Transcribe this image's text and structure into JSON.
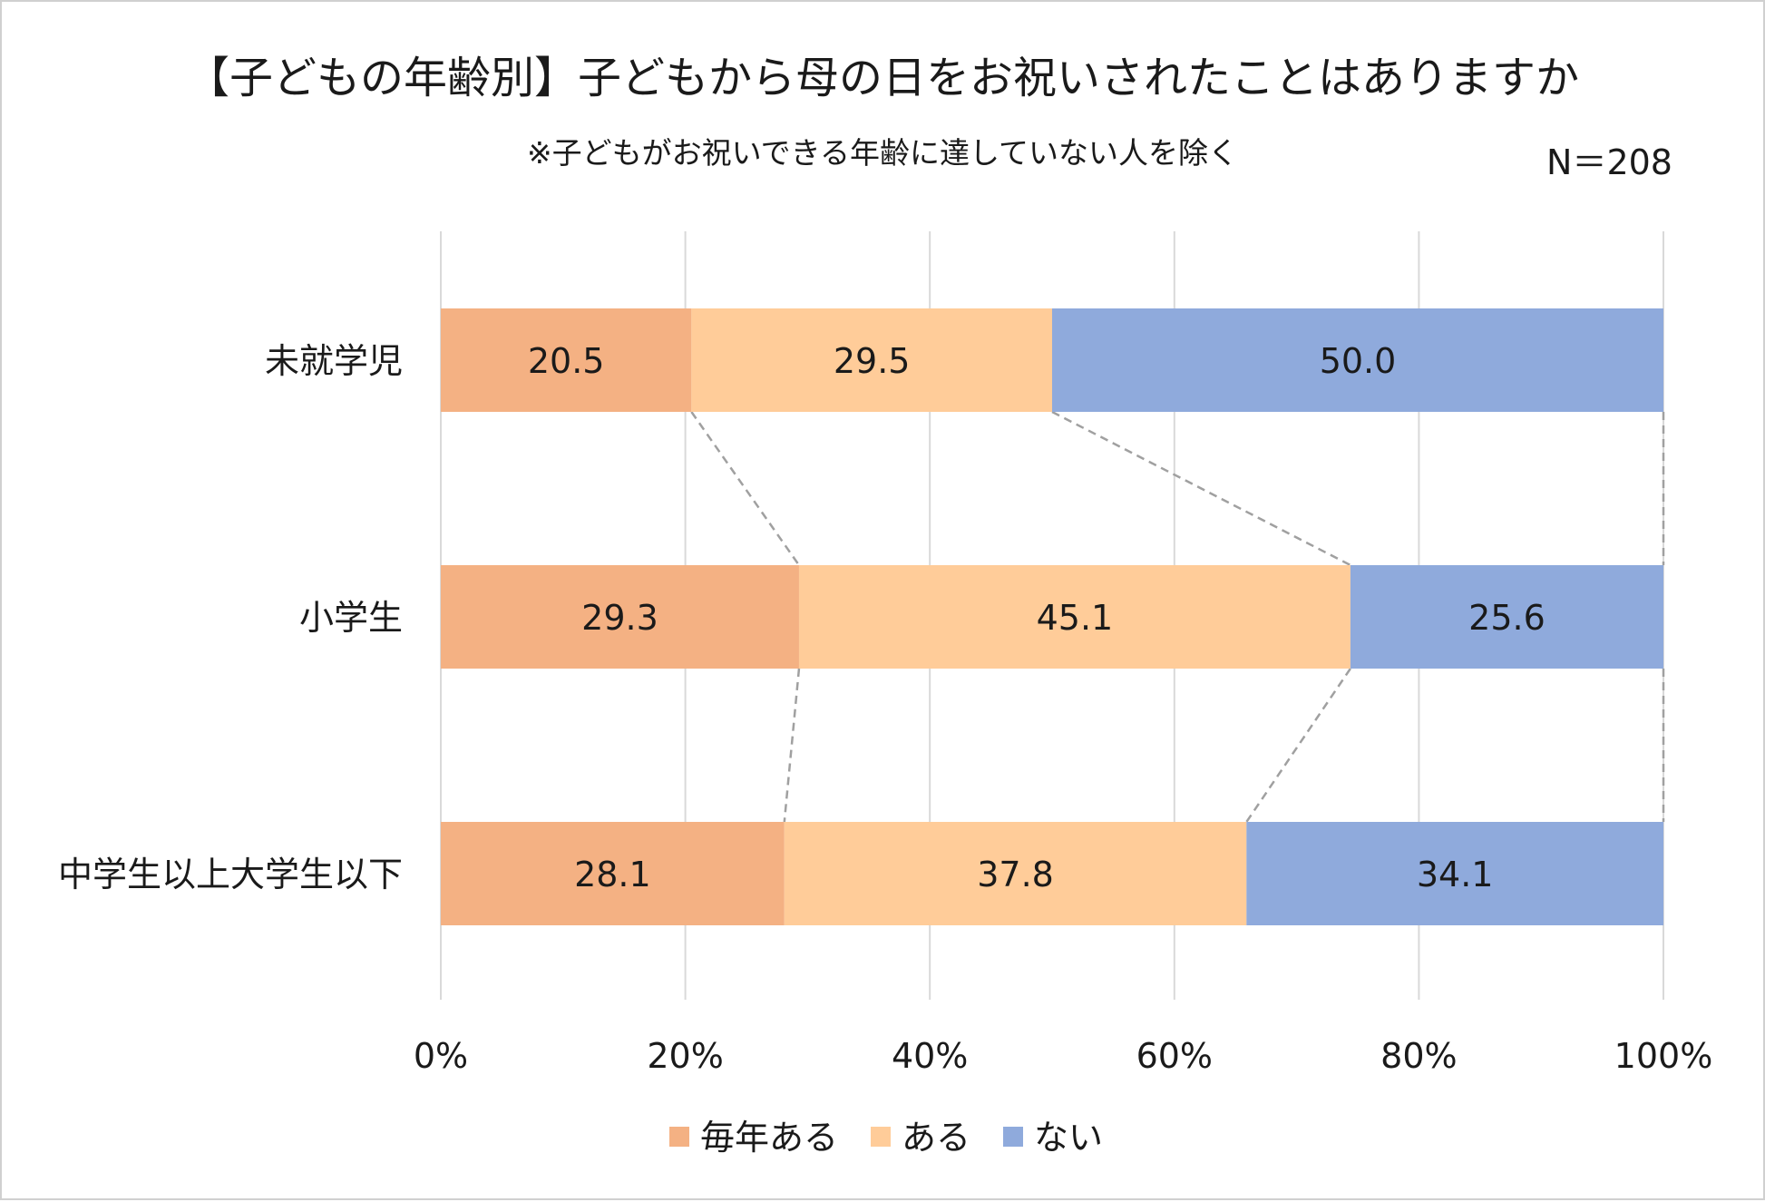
{
  "chart_data": {
    "type": "bar",
    "orientation": "horizontal",
    "stacked": "percent",
    "title": "【子どもの年齢別】子どもから母の日をお祝いされたことはありますか",
    "subtitle": "※子どもがお祝いできる年齢に達していない人を除く",
    "n_label": "N＝208",
    "categories": [
      "未就学児",
      "小学生",
      "中学生以上大学生以下"
    ],
    "series": [
      {
        "name": "毎年ある",
        "color": "#F4B183",
        "values": [
          20.5,
          29.3,
          28.1
        ],
        "labels": [
          "20.5",
          "29.3",
          "28.1"
        ]
      },
      {
        "name": "ある",
        "color": "#FFCC99",
        "values": [
          29.5,
          45.1,
          37.8
        ],
        "labels": [
          "29.5",
          "45.1",
          "37.8"
        ]
      },
      {
        "name": "ない",
        "color": "#8FAADC",
        "values": [
          50.0,
          25.6,
          34.1
        ],
        "labels": [
          "50.0",
          "25.6",
          "34.1"
        ]
      }
    ],
    "xlim": [
      0,
      100
    ],
    "xticks": [
      "0%",
      "20%",
      "40%",
      "60%",
      "80%",
      "100%"
    ],
    "grid": true,
    "series_lines": true,
    "legend_position": "bottom"
  }
}
